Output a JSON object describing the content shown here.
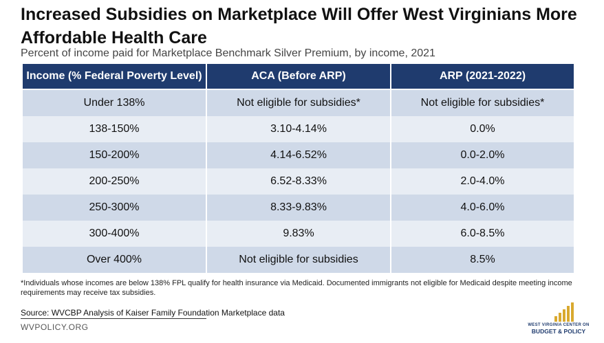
{
  "chart_data": {
    "type": "table",
    "title": "Increased Subsidies on Marketplace Will Offer West Virginians More Affordable Health Care",
    "subtitle": "Percent of income paid for Marketplace Benchmark Silver Premium, by income, 2021",
    "columns": [
      "Income (% Federal Poverty Level)",
      "ACA (Before ARP)",
      "ARP (2021-2022)"
    ],
    "rows": [
      [
        "Under 138%",
        "Not eligible for subsidies*",
        "Not eligible for subsidies*"
      ],
      [
        "138-150%",
        "3.10-4.14%",
        "0.0%"
      ],
      [
        "150-200%",
        "4.14-6.52%",
        "0.0-2.0%"
      ],
      [
        "200-250%",
        "6.52-8.33%",
        "2.0-4.0%"
      ],
      [
        "250-300%",
        "8.33-9.83%",
        "4.0-6.0%"
      ],
      [
        "300-400%",
        "9.83%",
        "6.0-8.5%"
      ],
      [
        "Over 400%",
        "Not eligible for subsidies",
        "8.5%"
      ]
    ],
    "footnote": "*Individuals whose incomes are below 138% FPL qualify for health insurance via Medicaid. Documented immigrants not eligible for Medicaid despite meeting income requirements may receive tax subsidies.",
    "source": "Source: WVCBP Analysis of Kaiser Family Foundation Marketplace data"
  },
  "footer": {
    "website": "WVPOLICY.ORG",
    "logo_line1": "WEST VIRGINIA CENTER ON",
    "logo_line2": "BUDGET & POLICY"
  },
  "colors": {
    "header_bg": "#1f3b6e",
    "row_dark": "#cfd9e8",
    "row_light": "#e8edf4",
    "logo_gold": "#d9a92f"
  }
}
